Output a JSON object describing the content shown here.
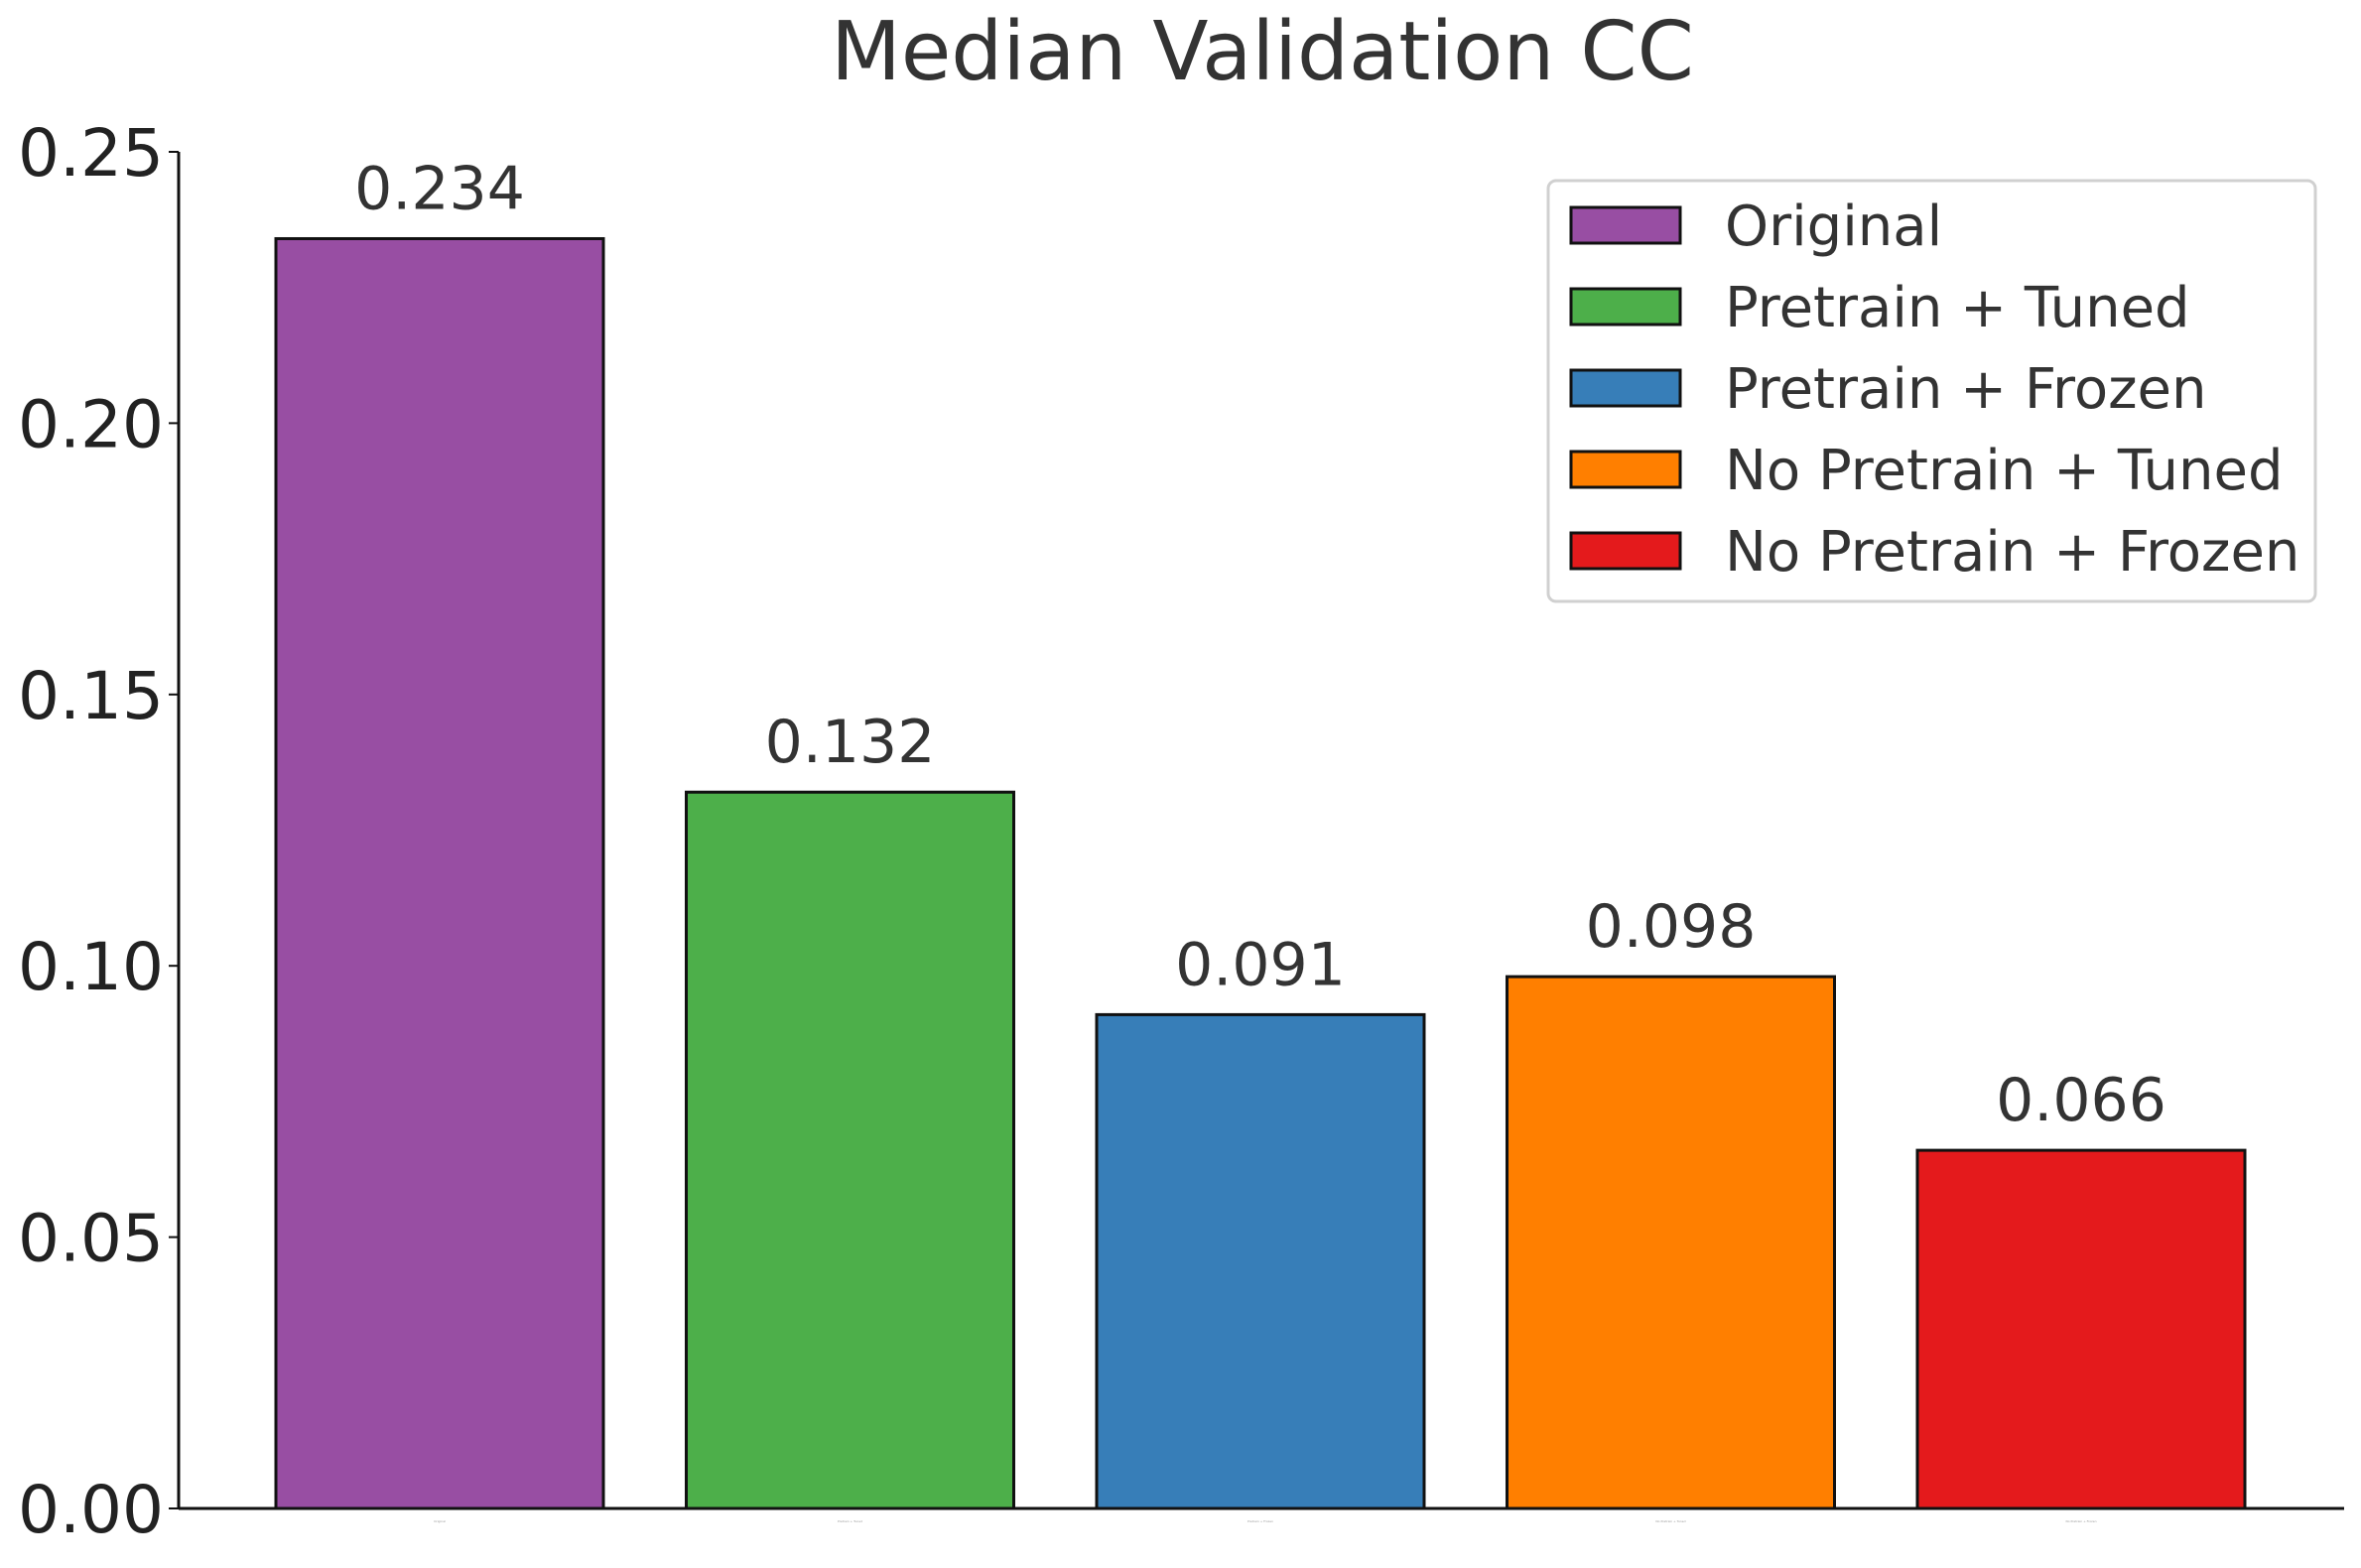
{
  "chart_data": {
    "type": "bar",
    "title": "Median Validation CC",
    "xlabel": "",
    "ylabel": "",
    "ylim": [
      0,
      0.25
    ],
    "yticks": [
      "0.00",
      "0.05",
      "0.10",
      "0.15",
      "0.20",
      "0.25"
    ],
    "categories": [
      "Original",
      "Pretrain + Tuned",
      "Pretrain + Frozen",
      "No Pretrain + Tuned",
      "No Pretrain + Frozen"
    ],
    "values": [
      0.234,
      0.132,
      0.091,
      0.098,
      0.066
    ],
    "value_labels": [
      "0.234",
      "0.132",
      "0.091",
      "0.098",
      "0.066"
    ],
    "colors": [
      "#984ea3",
      "#4daf4a",
      "#377eb8",
      "#ff7f00",
      "#e41a1c"
    ],
    "legend": {
      "position": "top-right",
      "entries": [
        "Original",
        "Pretrain + Tuned",
        "Pretrain + Frozen",
        "No Pretrain + Tuned",
        "No Pretrain + Frozen"
      ]
    },
    "grid": false
  }
}
